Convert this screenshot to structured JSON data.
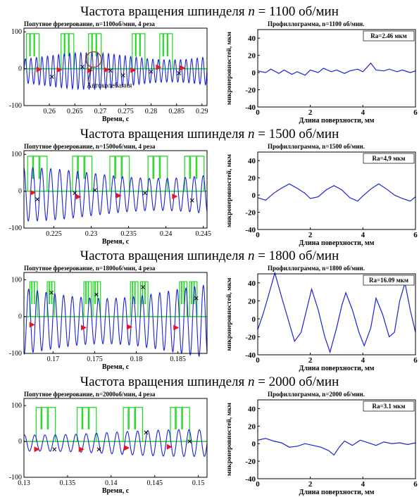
{
  "sections": [
    {
      "heading": {
        "prefix": "Частота вращения шпинделя ",
        "var": "n",
        "suffix": " = 1100 об/мин"
      },
      "signal": {
        "title": "Попутное фрезерование, n=1100об/мин, 4 реза",
        "xlabel": "Время, с",
        "xlim": [
          0.255,
          0.291
        ],
        "ylim": [
          -100,
          110
        ],
        "xticks": [
          0.26,
          0.265,
          0.27,
          0.275,
          0.28,
          0.285,
          0.29
        ],
        "xtick_labels": [
          "0.26",
          "0.265",
          "0.27",
          "0.275",
          "0.28",
          "0.285",
          "0.29"
        ],
        "yticks": [
          -100,
          0,
          100
        ],
        "ytick_labels": [
          "-100",
          "0",
          "100"
        ],
        "period": 0.00109,
        "amp": 40,
        "phase": 0.3,
        "cut_start": [
          0.2555,
          0.2623,
          0.2677,
          0.2763,
          0.2817
        ],
        "cut_len": 0.0025,
        "red_markers": [
          [
            0.258,
            -2
          ],
          [
            0.262,
            -3
          ],
          [
            0.268,
            -5
          ],
          [
            0.2713,
            -3
          ],
          [
            0.2765,
            -4
          ],
          [
            0.2815,
            4
          ],
          [
            0.2862,
            2
          ]
        ],
        "x_markers": [
          [
            0.2605,
            -22
          ],
          [
            0.2665,
            5
          ],
          [
            0.272,
            -5
          ],
          [
            0.2745,
            -18
          ],
          [
            0.28,
            -8
          ],
          [
            0.2855,
            -12
          ]
        ],
        "annotation": "Автоколебания",
        "annotation_at": [
          0.2687,
          25
        ]
      },
      "profile": {
        "title": "Профиллограмма, n=1100 об/мин.",
        "ra_label": "Ra=2.46 мкм",
        "xlabel": "Длина поверхности, мм",
        "ylabel": "микронеровностей, мкм",
        "xlim": [
          0,
          6
        ],
        "ylim": [
          -40,
          50
        ],
        "xticks": [
          0,
          2,
          4,
          6
        ],
        "yticks": [
          -40,
          -20,
          0,
          20,
          40
        ],
        "points": [
          [
            0,
            2
          ],
          [
            0.3,
            0
          ],
          [
            0.5,
            4
          ],
          [
            0.8,
            -1
          ],
          [
            1.0,
            3
          ],
          [
            1.3,
            -2
          ],
          [
            1.5,
            1
          ],
          [
            1.8,
            -3
          ],
          [
            2.0,
            3
          ],
          [
            2.3,
            0
          ],
          [
            2.5,
            5
          ],
          [
            2.8,
            1
          ],
          [
            3.0,
            3
          ],
          [
            3.3,
            -1
          ],
          [
            3.5,
            2
          ],
          [
            3.8,
            4
          ],
          [
            4.0,
            1
          ],
          [
            4.3,
            11
          ],
          [
            4.5,
            3
          ],
          [
            4.8,
            2
          ],
          [
            5.0,
            4
          ],
          [
            5.3,
            1
          ],
          [
            5.5,
            3
          ],
          [
            5.8,
            0
          ],
          [
            6.0,
            2
          ]
        ]
      }
    },
    {
      "heading": {
        "prefix": "Частота вращения шпинделя ",
        "var": "n",
        "suffix": " = 1500 об/мин"
      },
      "signal": {
        "title": "Попутное фрезерование, n=1500об/мин, 4 реза",
        "xlabel": "Время, с",
        "xlim": [
          0.221,
          0.2455
        ],
        "ylim": [
          -100,
          110
        ],
        "xticks": [
          0.225,
          0.23,
          0.235,
          0.24,
          0.245
        ],
        "xtick_labels": [
          "0.225",
          "0.23",
          "0.235",
          "0.24",
          "0.245"
        ],
        "yticks": [
          -100,
          0,
          100
        ],
        "ytick_labels": [
          "-100",
          "0",
          "100"
        ],
        "period": 0.0012,
        "amp": 58,
        "phase": 0.6,
        "cut_start": [
          0.2215,
          0.2275,
          0.2325,
          0.2376,
          0.2425
        ],
        "cut_len": 0.0026,
        "red_markers": [
          [
            0.2222,
            -4
          ],
          [
            0.2283,
            -15
          ],
          [
            0.2337,
            -12
          ],
          [
            0.2412,
            -14
          ]
        ],
        "x_markers": [
          [
            0.2228,
            -22
          ],
          [
            0.2278,
            -5
          ],
          [
            0.2305,
            3
          ],
          [
            0.2372,
            -5
          ],
          [
            0.2435,
            -25
          ]
        ],
        "annotation": "",
        "annotation_at": [
          0,
          0
        ]
      },
      "profile": {
        "title": "Профиллограмма, n=1500 об/мин.",
        "ra_label": "Ra=4,9 мкм",
        "xlabel": "Длина поверхности, мм",
        "ylabel": "микронеровностей, мкм",
        "xlim": [
          0,
          6
        ],
        "ylim": [
          -40,
          50
        ],
        "xticks": [
          0,
          2,
          4,
          6
        ],
        "yticks": [
          -40,
          -20,
          0,
          20,
          40
        ],
        "points": [
          [
            0,
            -3
          ],
          [
            0.3,
            -6
          ],
          [
            0.6,
            2
          ],
          [
            0.9,
            8
          ],
          [
            1.2,
            13
          ],
          [
            1.5,
            8
          ],
          [
            1.8,
            2
          ],
          [
            2.0,
            -4
          ],
          [
            2.3,
            -2
          ],
          [
            2.6,
            6
          ],
          [
            2.9,
            11
          ],
          [
            3.2,
            6
          ],
          [
            3.5,
            -3
          ],
          [
            3.8,
            -7
          ],
          [
            4.0,
            -1
          ],
          [
            4.3,
            7
          ],
          [
            4.6,
            13
          ],
          [
            4.9,
            7
          ],
          [
            5.2,
            0
          ],
          [
            5.5,
            -4
          ],
          [
            5.8,
            -7
          ],
          [
            6.0,
            -2
          ]
        ]
      }
    },
    {
      "heading": {
        "prefix": "Частота вращения шпинделя ",
        "var": "n",
        "suffix": " = 1800 об/мин"
      },
      "signal": {
        "title": "Попутное фрезерование, n=1800об/мин, 4 реза",
        "xlabel": "Время, с",
        "xlim": [
          0.1665,
          0.1885
        ],
        "ylim": [
          -100,
          120
        ],
        "xticks": [
          0.17,
          0.175,
          0.18,
          0.185
        ],
        "xtick_labels": [
          "0.17",
          "0.175",
          "0.18",
          "0.185"
        ],
        "yticks": [
          -100,
          0,
          100
        ],
        "ytick_labels": [
          "-100",
          "0",
          "100"
        ],
        "period": 0.00105,
        "amp": 82,
        "phase": 0.9,
        "cut_start": [
          0.1672,
          0.1693,
          0.1737,
          0.1748,
          0.1793,
          0.1805,
          0.1852,
          0.1864
        ],
        "cut_len": 0.0009,
        "red_markers": [
          [
            0.1675,
            -22
          ],
          [
            0.1737,
            -30
          ],
          [
            0.1792,
            -28
          ],
          [
            0.1848,
            -30
          ]
        ],
        "x_markers": [
          [
            0.1698,
            65
          ],
          [
            0.1752,
            60
          ],
          [
            0.1808,
            80
          ],
          [
            0.1872,
            50
          ]
        ],
        "annotation": "",
        "annotation_at": [
          0,
          0
        ]
      },
      "profile": {
        "title": "Профиллограмма, n=1800 об/мин.",
        "ra_label": "Ra=16.09 мкм",
        "xlabel": "Длина поверхности, мм",
        "ylabel": "микронеровностей, мкм",
        "xlim": [
          0,
          6
        ],
        "ylim": [
          -40,
          50
        ],
        "xticks": [
          0,
          2,
          4,
          6
        ],
        "yticks": [
          -40,
          -20,
          0,
          20,
          40
        ],
        "points": [
          [
            0,
            -12
          ],
          [
            0.2,
            5
          ],
          [
            0.4,
            25
          ],
          [
            0.65,
            51
          ],
          [
            0.9,
            25
          ],
          [
            1.15,
            0
          ],
          [
            1.4,
            -25
          ],
          [
            1.65,
            -15
          ],
          [
            1.9,
            15
          ],
          [
            2.05,
            33
          ],
          [
            2.3,
            10
          ],
          [
            2.55,
            -20
          ],
          [
            2.75,
            -37
          ],
          [
            3.0,
            -10
          ],
          [
            3.2,
            15
          ],
          [
            3.35,
            29
          ],
          [
            3.6,
            10
          ],
          [
            3.85,
            -15
          ],
          [
            4.05,
            -30
          ],
          [
            4.3,
            -10
          ],
          [
            4.5,
            23
          ],
          [
            4.75,
            5
          ],
          [
            5.0,
            -20
          ],
          [
            5.2,
            -15
          ],
          [
            5.4,
            20
          ],
          [
            5.6,
            40
          ],
          [
            5.8,
            10
          ],
          [
            6.0,
            -15
          ]
        ]
      }
    },
    {
      "heading": {
        "prefix": "Частота вращения шпинделя ",
        "var": "n",
        "suffix": " = 2000 об/мин"
      },
      "signal": {
        "title": "Попутное фрезерование, n=2000об/мин, 4 реза",
        "xlabel": "Время, с",
        "xlim": [
          0.13,
          0.151
        ],
        "ylim": [
          -100,
          120
        ],
        "xticks": [
          0.13,
          0.135,
          0.14,
          0.145,
          0.15
        ],
        "xtick_labels": [
          "0.13",
          "0.135",
          "0.14",
          "0.145",
          "0.15"
        ],
        "yticks": [
          -100,
          0,
          100
        ],
        "ytick_labels": [
          "-100",
          "0",
          "100"
        ],
        "period": 0.00118,
        "amp": 30,
        "phase": 0.2,
        "cut_start": [
          0.1314,
          0.1361,
          0.1414,
          0.1468
        ],
        "cut_len": 0.0022,
        "red_markers": [
          [
            0.1315,
            -22
          ],
          [
            0.1366,
            -22
          ],
          [
            0.1418,
            -18
          ],
          [
            0.1467,
            -15
          ]
        ],
        "x_markers": [
          [
            0.1335,
            -22
          ],
          [
            0.1386,
            -22
          ],
          [
            0.144,
            25
          ],
          [
            0.149,
            0
          ]
        ],
        "annotation": "",
        "annotation_at": [
          0,
          0
        ]
      },
      "profile": {
        "title": "Профиллограмма, n=2000 об/мин.",
        "ra_label": "Ra=3.1 мкм",
        "xlabel": "Длина поверхности, мм",
        "ylabel": "микронеровностей, мкм",
        "xlim": [
          0,
          6
        ],
        "ylim": [
          -40,
          50
        ],
        "xticks": [
          0,
          2,
          4,
          6
        ],
        "yticks": [
          -40,
          -20,
          0,
          20,
          40
        ],
        "points": [
          [
            0,
            4
          ],
          [
            0.3,
            6
          ],
          [
            0.6,
            3
          ],
          [
            0.9,
            1
          ],
          [
            1.2,
            -4
          ],
          [
            1.5,
            -3
          ],
          [
            1.8,
            0
          ],
          [
            2.1,
            -2
          ],
          [
            2.4,
            -4
          ],
          [
            2.7,
            -8
          ],
          [
            2.9,
            -13
          ],
          [
            3.1,
            -4
          ],
          [
            3.3,
            3
          ],
          [
            3.6,
            -2
          ],
          [
            3.9,
            4
          ],
          [
            4.2,
            1
          ],
          [
            4.5,
            -2
          ],
          [
            4.8,
            2
          ],
          [
            5.1,
            0
          ],
          [
            5.4,
            1
          ],
          [
            5.7,
            -1
          ],
          [
            6.0,
            1
          ]
        ]
      }
    }
  ],
  "colors": {
    "wave": "#1a23d6",
    "cut": "#1ed81e",
    "marker": "#e8141e",
    "xmark": "#000000",
    "zero": "#1ed81e",
    "circle": "#b0342b"
  }
}
